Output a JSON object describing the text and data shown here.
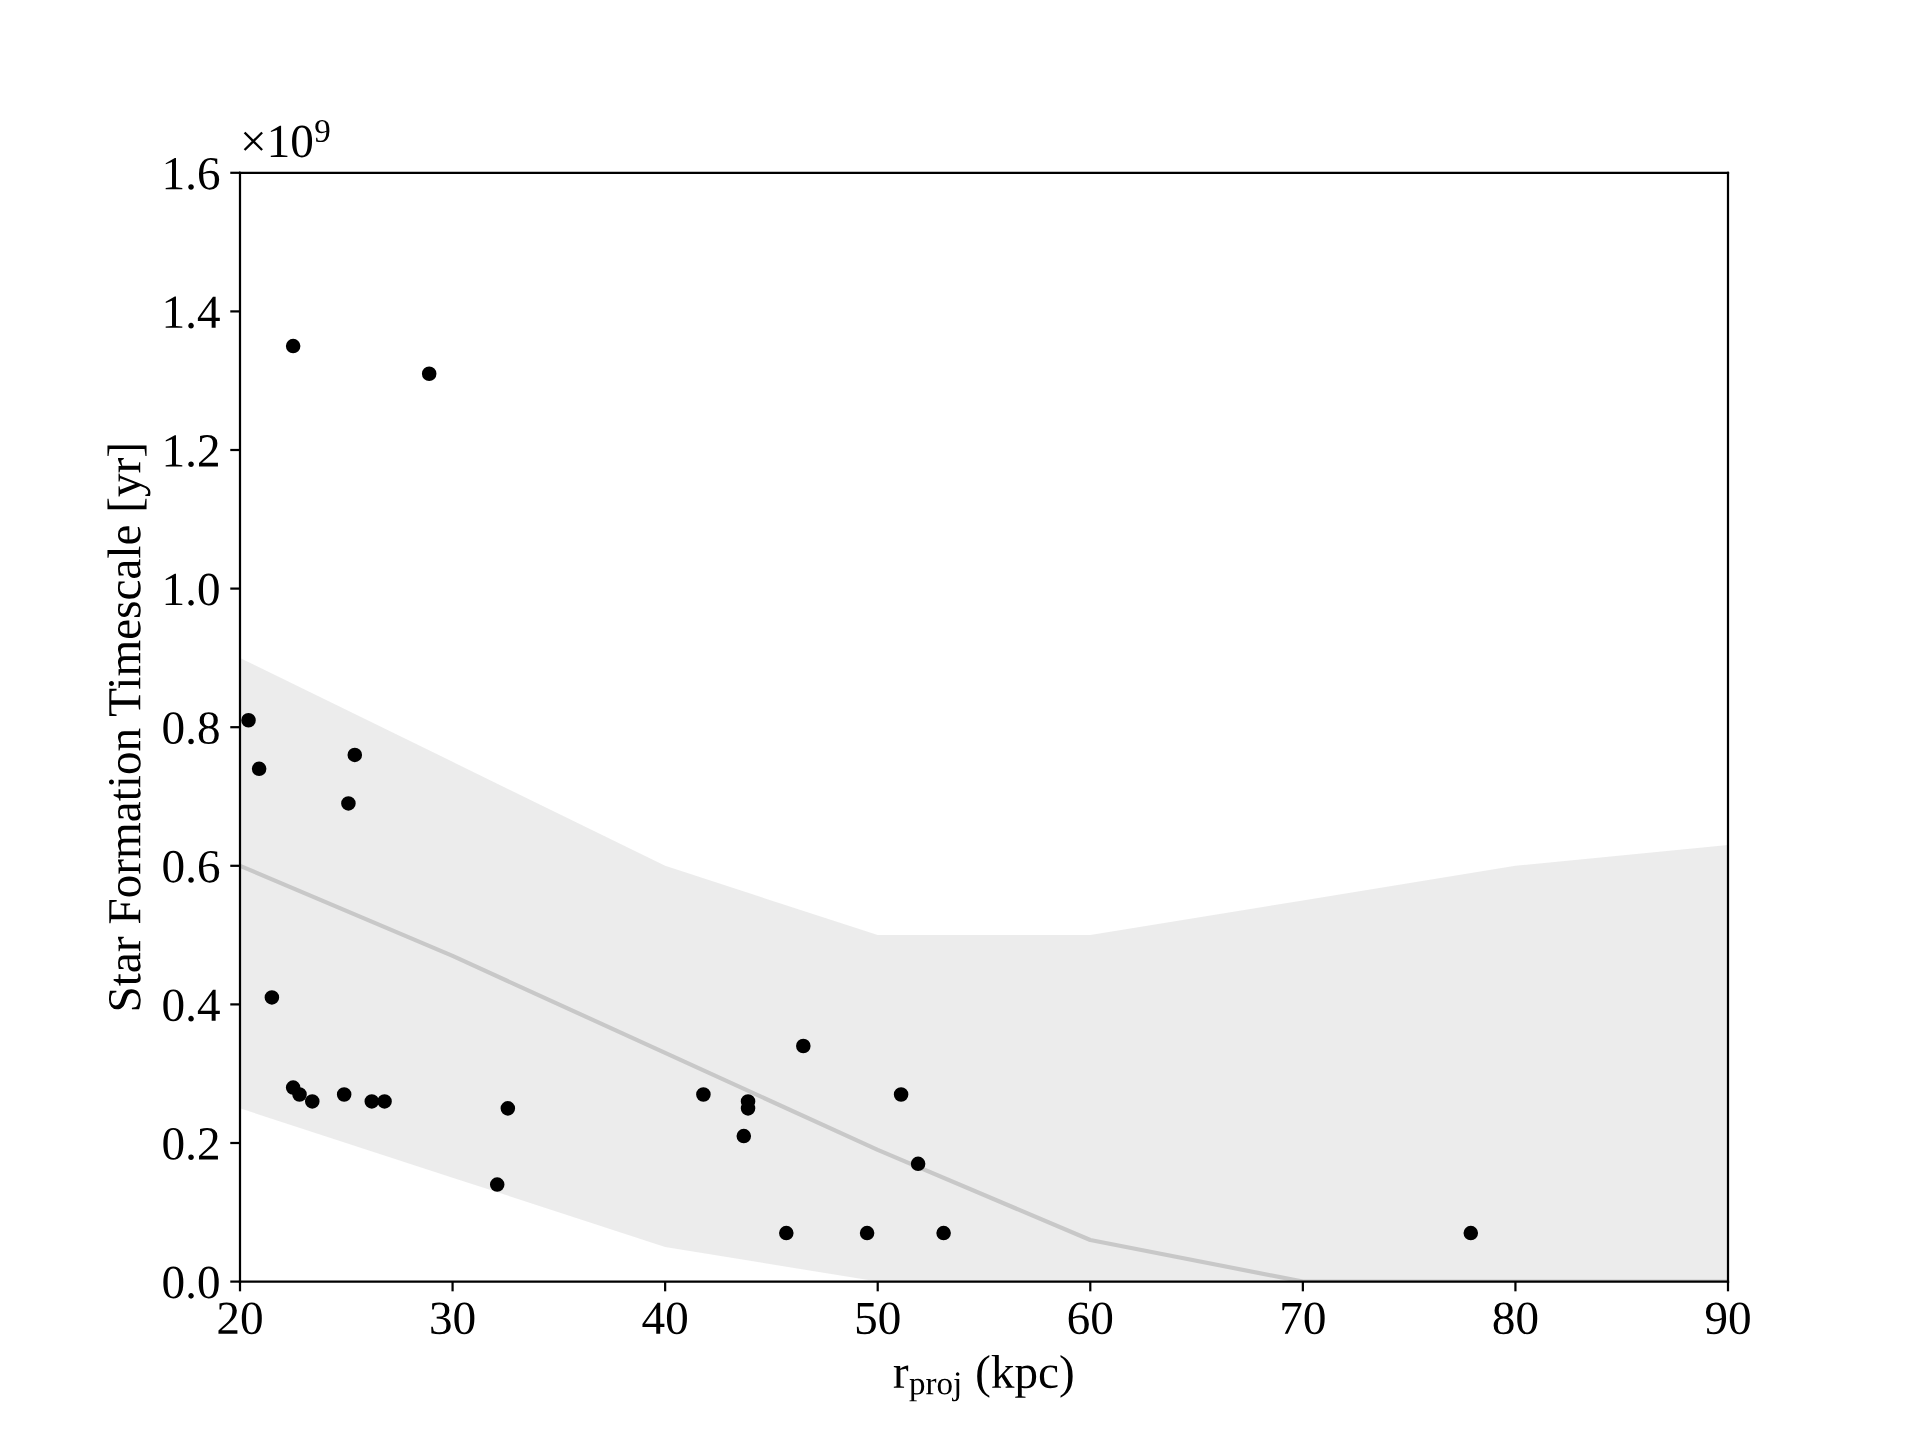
{
  "chart_data": {
    "type": "scatter",
    "xlabel": "r$_{proj}$ (kpc)",
    "ylabel": "Star Formation Timescale [yr]",
    "annotations": [
      "×10$^{9}$"
    ],
    "xlim": [
      20,
      90
    ],
    "xticks": [
      20,
      30,
      40,
      50,
      60,
      70,
      80,
      90
    ],
    "ylim": [
      0.0,
      1.6
    ],
    "yticks": [
      {
        "value": 0,
        "label": "0.0"
      },
      0.2,
      0.4,
      0.6,
      0.8,
      {
        "value": 1,
        "label": "1.0"
      },
      1.2,
      1.4,
      1.6
    ],
    "series": [
      {
        "type": "line",
        "color": "#c8c8c8",
        "x": [
          20,
          30,
          40,
          50,
          60,
          70,
          80,
          90
        ],
        "values": [
          0.6,
          0.47,
          0.33,
          0.19,
          0.06,
          0.0,
          0.0,
          0.0
        ],
        "lower": [
          0.25,
          0.15,
          0.05,
          0.0,
          0.0,
          0.0,
          0.0,
          0.0
        ],
        "upper": [
          0.9,
          0.75,
          0.6,
          0.5,
          0.5,
          0.55,
          0.6,
          0.63
        ]
      },
      {
        "marker": "circle",
        "color": "#000000",
        "x": [
          20.4,
          20.9,
          21.5,
          22.5,
          22.5,
          22.8,
          23.4,
          24.9,
          25.1,
          25.4,
          26.2,
          26.8,
          28.9,
          32.1,
          32.6,
          41.8,
          43.7,
          43.9,
          43.9,
          46.5,
          45.7,
          49.5,
          51.1,
          51.9,
          53.1,
          77.9
        ],
        "values": [
          0.81,
          0.74,
          0.41,
          1.35,
          0.28,
          0.27,
          0.26,
          0.27,
          0.69,
          0.76,
          0.26,
          0.26,
          1.31,
          0.14,
          0.25,
          0.27,
          0.21,
          0.25,
          0.26,
          0.34,
          0.07,
          0.07,
          0.27,
          0.17,
          0.07,
          0.07
        ]
      }
    ]
  }
}
